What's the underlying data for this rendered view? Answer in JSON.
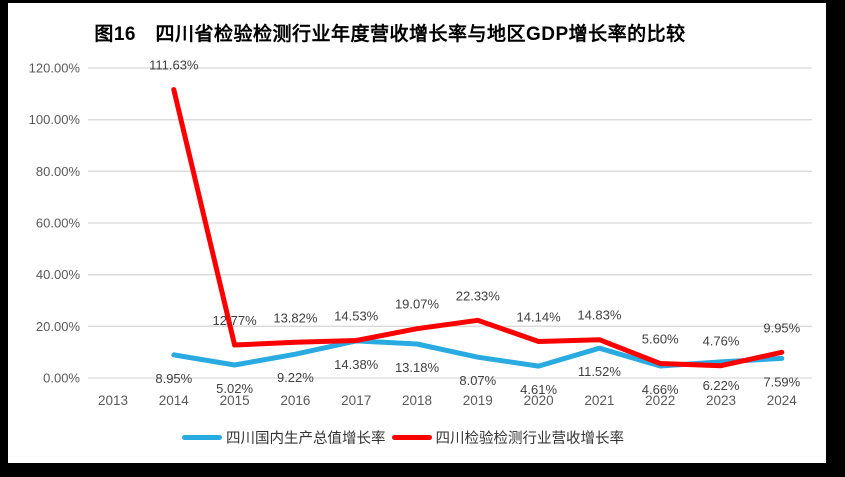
{
  "title": "图16　四川省检验检测行业年度营收增长率与地区GDP增长率的比较",
  "legend": [
    {
      "label": "四川国内生产总值增长率",
      "color": "#29ABE2"
    },
    {
      "label": "四川检验检测行业营收增长率",
      "color": "#FC0000"
    }
  ],
  "chart_data": {
    "type": "line",
    "title": "图16　四川省检验检测行业年度营收增长率与地区GDP增长率的比较",
    "categories": [
      "2013",
      "2014",
      "2015",
      "2016",
      "2017",
      "2018",
      "2019",
      "2020",
      "2021",
      "2022",
      "2023",
      "2024"
    ],
    "series": [
      {
        "name": "四川国内生产总值增长率",
        "color": "#29ABE2",
        "values": [
          null,
          8.95,
          5.02,
          9.22,
          14.38,
          13.18,
          8.07,
          4.61,
          11.52,
          4.66,
          6.22,
          7.59
        ]
      },
      {
        "name": "四川检验检测行业营收增长率",
        "color": "#FC0000",
        "values": [
          null,
          111.63,
          12.77,
          13.82,
          14.53,
          19.07,
          22.33,
          14.14,
          14.83,
          5.6,
          4.76,
          9.95
        ]
      }
    ],
    "y_ticks": [
      "0.00%",
      "20.00%",
      "40.00%",
      "60.00%",
      "80.00%",
      "100.00%",
      "120.00%"
    ],
    "y_tick_values": [
      0,
      20,
      40,
      60,
      80,
      100,
      120
    ],
    "ylim": [
      0,
      120
    ],
    "grid": true,
    "data_labels": true,
    "legend_position": "bottom",
    "colors": {
      "gridline": "#D9D9D9",
      "axis_text": "#595959",
      "data_label_text": "#404040",
      "frame": "#000000",
      "background": "#FFFFFF"
    }
  }
}
